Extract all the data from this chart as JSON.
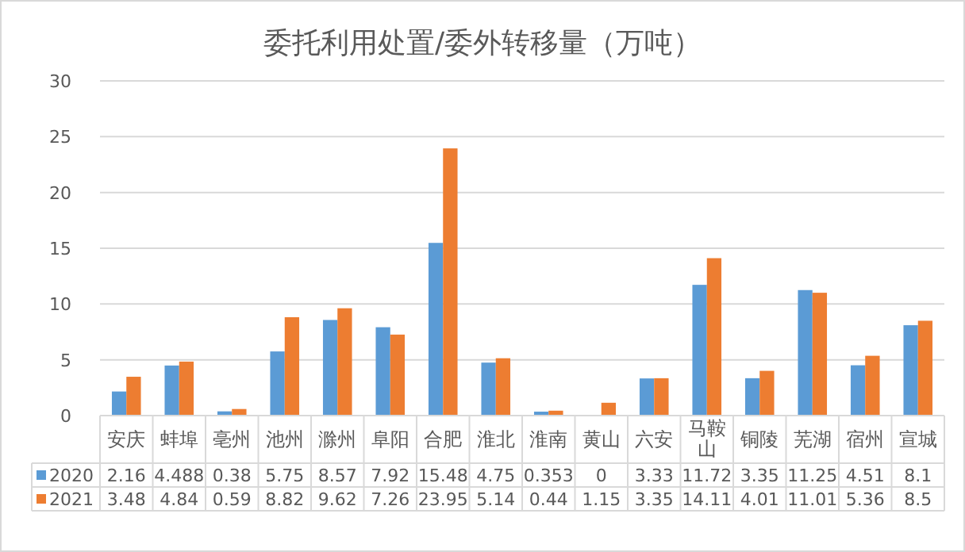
{
  "chart_data": {
    "type": "bar",
    "title": "委托利用处置/委外转移量（万吨）",
    "categories": [
      "安庆",
      "蚌埠",
      "亳州",
      "池州",
      "滁州",
      "阜阳",
      "合肥",
      "淮北",
      "淮南",
      "黄山",
      "六安",
      "马鞍山",
      "铜陵",
      "芜湖",
      "宿州",
      "宣城"
    ],
    "series": [
      {
        "name": "2020",
        "color": "#5b9bd5",
        "values": [
          2.16,
          4.488,
          0.38,
          5.75,
          8.57,
          7.92,
          15.48,
          4.75,
          0.353,
          0,
          3.33,
          11.72,
          3.35,
          11.25,
          4.51,
          8.1
        ]
      },
      {
        "name": "2021",
        "color": "#ed7d31",
        "values": [
          3.48,
          4.84,
          0.59,
          8.82,
          9.62,
          7.26,
          23.95,
          5.14,
          0.44,
          1.15,
          3.35,
          14.11,
          4.01,
          11.01,
          5.36,
          8.5
        ]
      }
    ],
    "ylim": [
      0,
      30
    ],
    "yticks": [
      0,
      5,
      10,
      15,
      20,
      25,
      30
    ],
    "grid": "y",
    "legend": "bottom",
    "data_labels": true
  }
}
